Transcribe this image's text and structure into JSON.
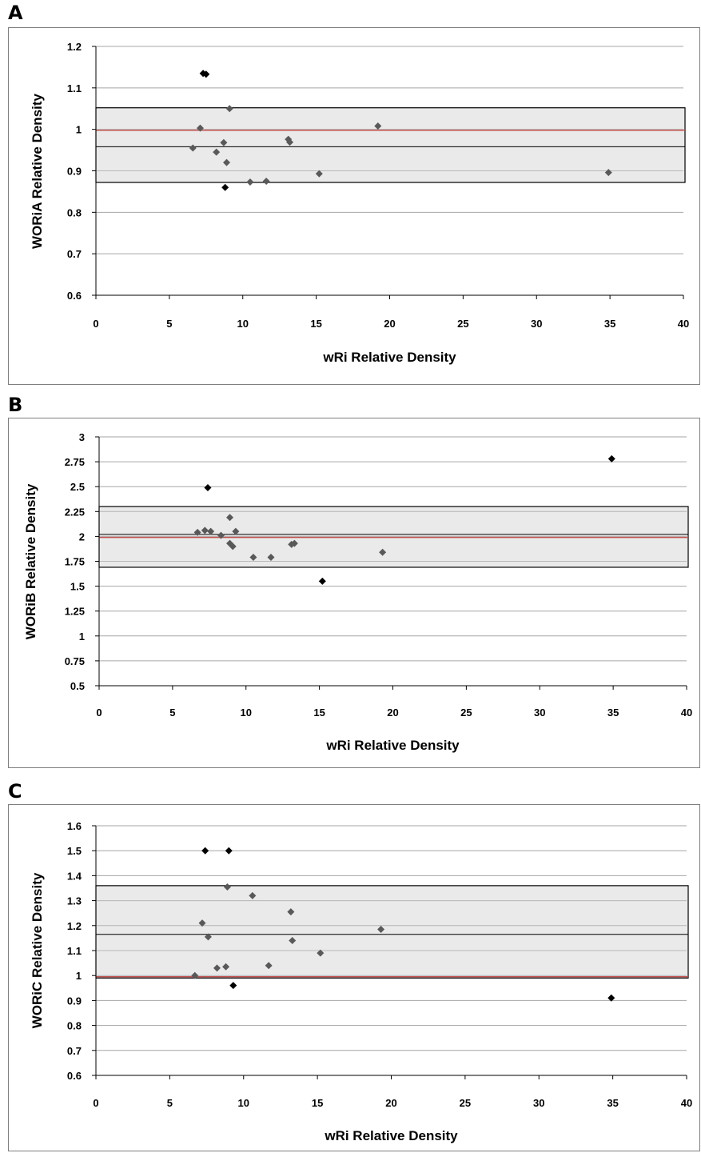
{
  "chart_data": [
    {
      "panel": "A",
      "type": "scatter",
      "xlabel": "wRi Relative Density",
      "ylabel": "WORiA Relative Density",
      "xlim": [
        0,
        40
      ],
      "ylim": [
        0.6,
        1.2
      ],
      "xticks": [
        "0",
        "5",
        "10",
        "15",
        "20",
        "25",
        "30",
        "35",
        "40"
      ],
      "yticks": [
        "0.6",
        "0.7",
        "0.8",
        "0.9",
        "1",
        "1.1",
        "1.2"
      ],
      "band": [
        0.872,
        1.052
      ],
      "mean_line": 0.958,
      "reference_line": 0.998,
      "points_in_band": [
        {
          "x": 6.6,
          "y": 0.955
        },
        {
          "x": 7.1,
          "y": 1.003
        },
        {
          "x": 8.2,
          "y": 0.945
        },
        {
          "x": 8.7,
          "y": 0.968
        },
        {
          "x": 8.9,
          "y": 0.92
        },
        {
          "x": 9.1,
          "y": 1.05
        },
        {
          "x": 10.5,
          "y": 0.873
        },
        {
          "x": 11.6,
          "y": 0.875
        },
        {
          "x": 13.1,
          "y": 0.976
        },
        {
          "x": 13.2,
          "y": 0.969
        },
        {
          "x": 15.2,
          "y": 0.893
        },
        {
          "x": 19.2,
          "y": 1.008
        },
        {
          "x": 34.9,
          "y": 0.896
        }
      ],
      "points_outliers": [
        {
          "x": 7.3,
          "y": 1.135
        },
        {
          "x": 7.5,
          "y": 1.133
        },
        {
          "x": 8.8,
          "y": 0.86
        }
      ],
      "colors": {
        "band": "#e6e6e6",
        "reference": "#c0504d",
        "point": "#595959",
        "outlier": "#000000"
      }
    },
    {
      "panel": "B",
      "type": "scatter",
      "xlabel": "wRi Relative Density",
      "ylabel": "WORiB Relative Density",
      "xlim": [
        0,
        40
      ],
      "ylim": [
        0.5,
        3
      ],
      "xticks": [
        "0",
        "5",
        "10",
        "15",
        "20",
        "25",
        "30",
        "35",
        "40"
      ],
      "yticks": [
        "0.5",
        "0.75",
        "1",
        "1.25",
        "1.5",
        "1.75",
        "2",
        "2.25",
        "2.5",
        "2.75",
        "3"
      ],
      "band": [
        1.69,
        2.3
      ],
      "mean_line": 2.02,
      "reference_line": 1.99,
      "points_in_band": [
        {
          "x": 6.7,
          "y": 2.04
        },
        {
          "x": 7.2,
          "y": 2.06
        },
        {
          "x": 7.6,
          "y": 2.05
        },
        {
          "x": 8.3,
          "y": 2.01
        },
        {
          "x": 8.9,
          "y": 2.19
        },
        {
          "x": 8.9,
          "y": 1.93
        },
        {
          "x": 9.1,
          "y": 1.9
        },
        {
          "x": 9.3,
          "y": 2.05
        },
        {
          "x": 10.5,
          "y": 1.79
        },
        {
          "x": 11.7,
          "y": 1.79
        },
        {
          "x": 13.1,
          "y": 1.92
        },
        {
          "x": 13.3,
          "y": 1.93
        },
        {
          "x": 19.3,
          "y": 1.84
        }
      ],
      "points_outliers": [
        {
          "x": 7.4,
          "y": 2.49
        },
        {
          "x": 15.2,
          "y": 1.55
        },
        {
          "x": 34.9,
          "y": 2.78
        }
      ],
      "colors": {
        "band": "#e6e6e6",
        "reference": "#c0504d",
        "point": "#595959",
        "outlier": "#000000"
      }
    },
    {
      "panel": "C",
      "type": "scatter",
      "xlabel": "wRi  Relative Density",
      "ylabel": "WORiC Relative Density",
      "xlim": [
        0,
        40
      ],
      "ylim": [
        0.6,
        1.6
      ],
      "xticks": [
        "0",
        "5",
        "10",
        "15",
        "20",
        "25",
        "30",
        "35",
        "40"
      ],
      "yticks": [
        "0.6",
        "0.7",
        "0.8",
        "0.9",
        "1",
        "1.1",
        "1.2",
        "1.3",
        "1.4",
        "1.5",
        "1.6"
      ],
      "band": [
        0.99,
        1.36
      ],
      "mean_line": 1.165,
      "reference_line": 0.995,
      "points_in_band": [
        {
          "x": 6.7,
          "y": 1.0
        },
        {
          "x": 7.2,
          "y": 1.21
        },
        {
          "x": 7.6,
          "y": 1.155
        },
        {
          "x": 8.2,
          "y": 1.03
        },
        {
          "x": 8.8,
          "y": 1.035
        },
        {
          "x": 8.9,
          "y": 1.355
        },
        {
          "x": 10.6,
          "y": 1.32
        },
        {
          "x": 11.7,
          "y": 1.04
        },
        {
          "x": 13.2,
          "y": 1.255
        },
        {
          "x": 13.3,
          "y": 1.14
        },
        {
          "x": 15.2,
          "y": 1.09
        },
        {
          "x": 19.3,
          "y": 1.185
        }
      ],
      "points_outliers": [
        {
          "x": 7.4,
          "y": 1.5
        },
        {
          "x": 9.0,
          "y": 1.5
        },
        {
          "x": 9.3,
          "y": 0.96
        },
        {
          "x": 34.9,
          "y": 0.91
        }
      ],
      "colors": {
        "band": "#e6e6e6",
        "reference": "#c0504d",
        "point": "#595959",
        "outlier": "#000000"
      }
    }
  ]
}
